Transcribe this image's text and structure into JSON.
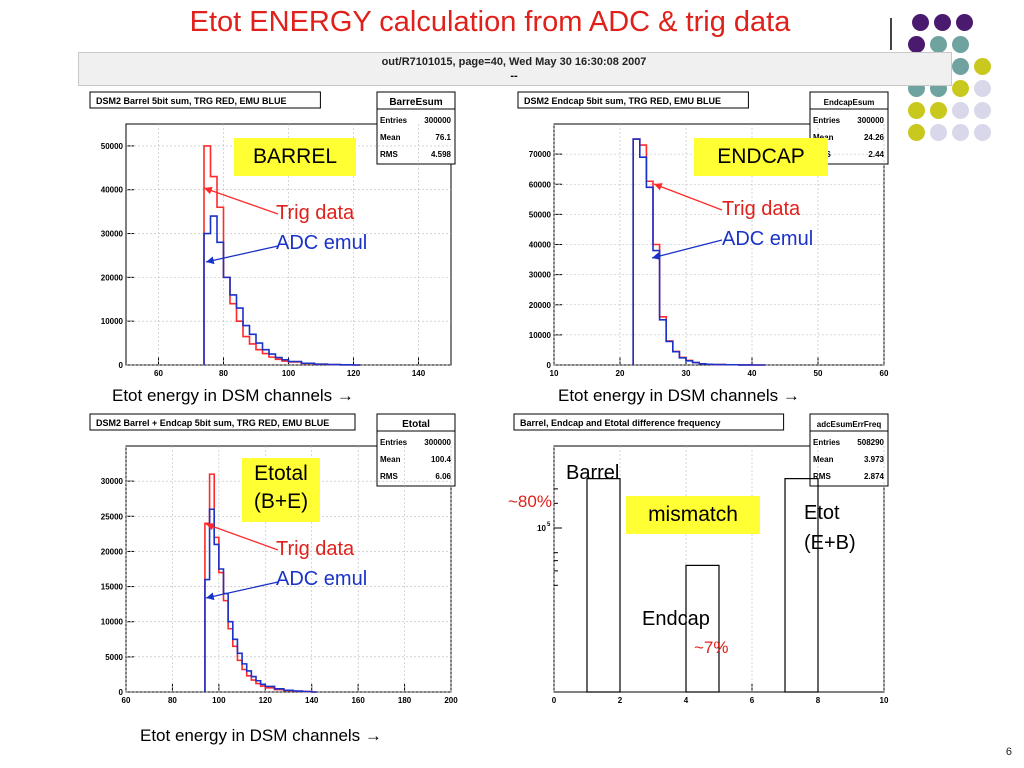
{
  "title": "Etot ENERGY calculation from ADC & trig data",
  "page_number": "6",
  "header": {
    "text": "out/R7101015, page=40,  Wed May 30 16:30:08 2007",
    "dashes": "--"
  },
  "colors": {
    "trig": "#ff2a2a",
    "adc": "#1b32c8",
    "title": "#e0201b",
    "highlight": "#ffff33",
    "dot_purple": "#4a1a6e",
    "dot_teal": "#6fa3a0",
    "dot_olive": "#c8c81e",
    "dot_lav": "#d8d8ea"
  },
  "panels": {
    "barrel": {
      "plot_title": "DSM2 Barrel 5bit sum, TRG RED, EMU BLUE",
      "stats_name": "BarreEsum",
      "stats": [
        [
          "Entries",
          "300000"
        ],
        [
          "Mean",
          "76.1"
        ],
        [
          "RMS",
          "4.598"
        ]
      ],
      "label_box": "BARREL",
      "trig_label": "Trig data",
      "adc_label": "ADC emul",
      "caption": "Etot  energy in DSM channels →"
    },
    "endcap": {
      "plot_title": "DSM2 Endcap 5bit sum, TRG RED, EMU BLUE",
      "stats_name": "EndcapEsum",
      "stats": [
        [
          "Entries",
          "300000"
        ],
        [
          "Mean",
          "24.26"
        ],
        [
          "RMS",
          "2.44"
        ]
      ],
      "label_box": "ENDCAP",
      "trig_label": "Trig data",
      "adc_label": "ADC emul",
      "caption": "Etot  energy in DSM channels →"
    },
    "total": {
      "plot_title": "DSM2 Barrel + Endcap 5bit sum, TRG RED, EMU BLUE",
      "stats_name": "Etotal",
      "stats": [
        [
          "Entries",
          "300000"
        ],
        [
          "Mean",
          "100.4"
        ],
        [
          "RMS",
          "6.06"
        ]
      ],
      "label_box_line1": "Etotal",
      "label_box_line2": "(B+E)",
      "trig_label": "Trig data",
      "adc_label": "ADC emul",
      "caption": "Etot  energy in DSM channels →"
    },
    "diff": {
      "plot_title": "Barrel, Endcap and Etotal difference frequency",
      "stats_name": "adcEsumErrFreq",
      "stats": [
        [
          "Entries",
          "508290"
        ],
        [
          "Mean",
          "3.973"
        ],
        [
          "RMS",
          "2.874"
        ]
      ],
      "barrel_label": "Barrel",
      "pct_80": "~80%",
      "mismatch": "mismatch",
      "etot_line1": "Etot",
      "etot_line2": "(E+B)",
      "endcap_label": "Endcap",
      "pct_7": "~7%"
    }
  },
  "chart_data": [
    {
      "id": "barrel",
      "type": "line",
      "xlim": [
        50,
        150
      ],
      "ylim": [
        0,
        55000
      ],
      "xticks": [
        60,
        80,
        100,
        120,
        140
      ],
      "yticks": [
        0,
        10000,
        20000,
        30000,
        40000,
        50000
      ],
      "series": [
        {
          "x": [
            74,
            76,
            78,
            80,
            82,
            84,
            86,
            88,
            90,
            92,
            94,
            96,
            98,
            100,
            104,
            108,
            112,
            116,
            120
          ],
          "values": [
            50000,
            43000,
            36000,
            20000,
            14000,
            10000,
            6500,
            4800,
            3500,
            2600,
            1800,
            1300,
            900,
            700,
            350,
            180,
            80,
            40,
            0
          ]
        },
        {
          "x": [
            74,
            76,
            78,
            80,
            82,
            84,
            86,
            88,
            90,
            92,
            94,
            96,
            98,
            100,
            104,
            108,
            112,
            116,
            120
          ],
          "values": [
            30000,
            34000,
            28000,
            20000,
            16000,
            13000,
            9000,
            7000,
            5000,
            3500,
            2500,
            1700,
            1200,
            800,
            400,
            200,
            90,
            40,
            0
          ]
        }
      ]
    },
    {
      "id": "endcap",
      "type": "line",
      "xlim": [
        10,
        60
      ],
      "ylim": [
        0,
        80000
      ],
      "xticks": [
        10,
        20,
        30,
        40,
        50,
        60
      ],
      "yticks": [
        0,
        10000,
        20000,
        30000,
        40000,
        50000,
        60000,
        70000
      ],
      "series": [
        {
          "x": [
            22,
            23,
            24,
            25,
            26,
            27,
            28,
            29,
            30,
            31,
            32,
            33,
            34,
            36,
            38,
            40
          ],
          "values": [
            75000,
            73000,
            61000,
            40000,
            16000,
            8000,
            4500,
            2500,
            1500,
            800,
            400,
            250,
            150,
            80,
            30,
            0
          ]
        },
        {
          "x": [
            22,
            23,
            24,
            25,
            26,
            27,
            28,
            29,
            30,
            31,
            32,
            33,
            34,
            36,
            38,
            40
          ],
          "values": [
            75000,
            69000,
            59000,
            38000,
            15000,
            7800,
            4400,
            2400,
            1400,
            800,
            400,
            250,
            150,
            80,
            30,
            0
          ]
        }
      ]
    },
    {
      "id": "total",
      "type": "line",
      "xlim": [
        60,
        200
      ],
      "ylim": [
        0,
        35000
      ],
      "xticks": [
        60,
        80,
        100,
        120,
        140,
        160,
        180,
        200
      ],
      "yticks": [
        0,
        5000,
        10000,
        15000,
        20000,
        25000,
        30000
      ],
      "series": [
        {
          "x": [
            94,
            96,
            98,
            100,
            102,
            104,
            106,
            108,
            110,
            112,
            114,
            116,
            118,
            120,
            124,
            128,
            132,
            136,
            140
          ],
          "values": [
            24000,
            31000,
            22000,
            17000,
            13000,
            9000,
            6500,
            4500,
            3200,
            2300,
            1700,
            1200,
            850,
            600,
            350,
            200,
            120,
            60,
            0
          ]
        },
        {
          "x": [
            94,
            96,
            98,
            100,
            102,
            104,
            106,
            108,
            110,
            112,
            114,
            116,
            118,
            120,
            124,
            128,
            132,
            136,
            140
          ],
          "values": [
            16000,
            26000,
            21000,
            17500,
            14000,
            10000,
            7500,
            5500,
            4000,
            3000,
            2200,
            1600,
            1100,
            800,
            450,
            250,
            140,
            70,
            0
          ]
        }
      ]
    },
    {
      "id": "diff",
      "type": "bar",
      "xlim": [
        0,
        10
      ],
      "yscale": "log",
      "xticks": [
        0,
        2,
        4,
        6,
        8,
        10
      ],
      "ytick_label": "10",
      "ytick_exp": "5",
      "bins": [
        {
          "x0": 1,
          "x1": 2,
          "value": 400000
        },
        {
          "x0": 4,
          "x1": 5,
          "value": 35000
        },
        {
          "x0": 7,
          "x1": 8,
          "value": 400000
        }
      ]
    }
  ]
}
